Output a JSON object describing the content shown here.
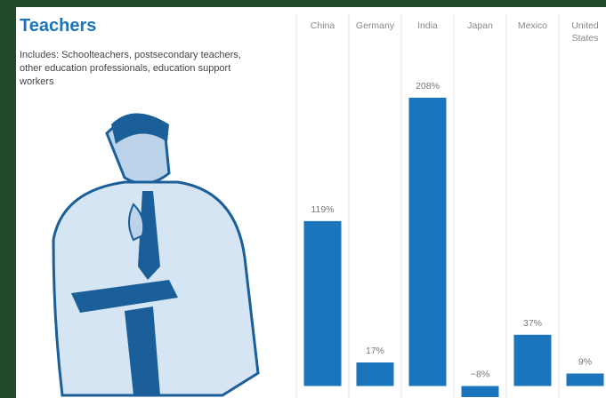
{
  "chart_data": {
    "type": "bar",
    "title": "Teachers",
    "subtitle": "Includes: Schoolteachers, postsecondary teachers, other education professionals, education support workers",
    "categories": [
      "China",
      "Germany",
      "India",
      "Japan",
      "Mexico",
      "United States"
    ],
    "values": [
      119,
      17,
      208,
      -8,
      37,
      9
    ],
    "value_labels": [
      "119%",
      "17%",
      "208%",
      "−8%",
      "37%",
      "9%"
    ],
    "color": "#1a75bc"
  }
}
